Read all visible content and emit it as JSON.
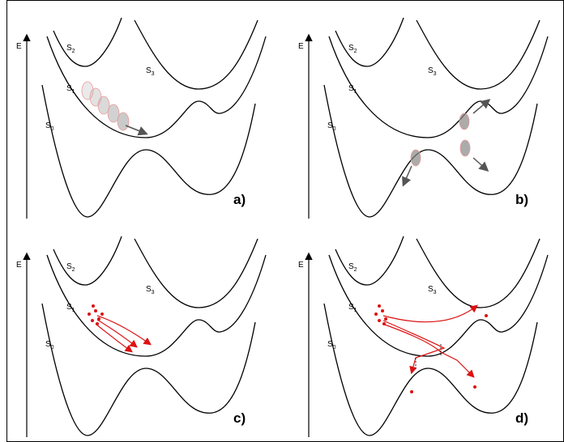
{
  "panels": [
    {
      "label": "a)",
      "axis_label": "E",
      "states": [
        {
          "letter": "S",
          "sub": "2"
        },
        {
          "letter": "S",
          "sub": "3"
        },
        {
          "letter": "S",
          "sub": "1"
        },
        {
          "letter": "S",
          "sub": "0"
        }
      ]
    },
    {
      "label": "b)",
      "axis_label": "E",
      "states": [
        {
          "letter": "S",
          "sub": "2"
        },
        {
          "letter": "S",
          "sub": "3"
        },
        {
          "letter": "S",
          "sub": "1"
        },
        {
          "letter": "S",
          "sub": "0"
        }
      ]
    },
    {
      "label": "c)",
      "axis_label": "E",
      "states": [
        {
          "letter": "S",
          "sub": "2"
        },
        {
          "letter": "S",
          "sub": "3"
        },
        {
          "letter": "S",
          "sub": "1"
        },
        {
          "letter": "S",
          "sub": "0"
        }
      ]
    },
    {
      "label": "d)",
      "axis_label": "E",
      "states": [
        {
          "letter": "S",
          "sub": "2"
        },
        {
          "letter": "S",
          "sub": "3"
        },
        {
          "letter": "S",
          "sub": "1"
        },
        {
          "letter": "S",
          "sub": "0"
        }
      ]
    }
  ]
}
